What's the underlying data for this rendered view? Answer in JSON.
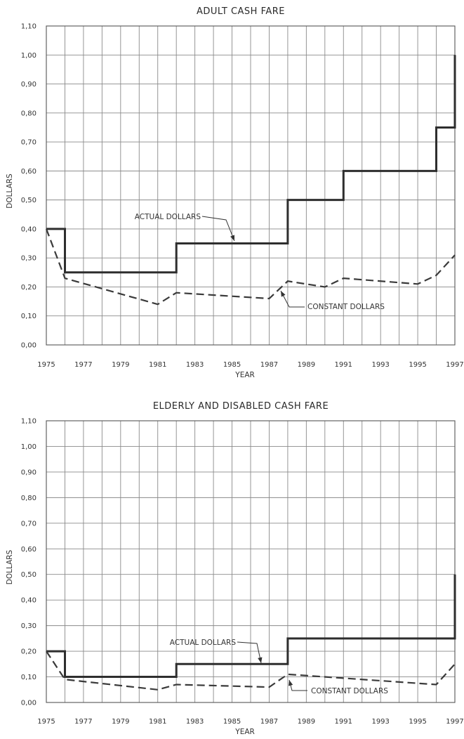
{
  "chart_data": [
    {
      "type": "line",
      "title": "ADULT CASH FARE",
      "xlabel": "YEAR",
      "ylabel": "DOLLARS",
      "xlim": [
        1975,
        1997
      ],
      "ylim": [
        0,
        1.1
      ],
      "x_ticks": [
        "1975",
        "1977",
        "1979",
        "1981",
        "1983",
        "1985",
        "1987",
        "1989",
        "1991",
        "1993",
        "1995",
        "1997"
      ],
      "y_ticks": [
        "0,00",
        "0,10",
        "0,20",
        "0,30",
        "0,40",
        "0,50",
        "0,60",
        "0,70",
        "0,80",
        "0,90",
        "1,00",
        "1,10"
      ],
      "grid": true,
      "series": [
        {
          "name": "ACTUAL DOLLARS",
          "style": "solid-step",
          "points": [
            [
              1975,
              0.4
            ],
            [
              1976,
              0.4
            ],
            [
              1976,
              0.25
            ],
            [
              1982,
              0.25
            ],
            [
              1982,
              0.35
            ],
            [
              1988,
              0.35
            ],
            [
              1988,
              0.5
            ],
            [
              1991,
              0.5
            ],
            [
              1991,
              0.6
            ],
            [
              1996,
              0.6
            ],
            [
              1996,
              0.75
            ],
            [
              1997,
              0.75
            ],
            [
              1997,
              1.0
            ]
          ]
        },
        {
          "name": "CONSTANT DOLLARS",
          "style": "dashed",
          "points": [
            [
              1975,
              0.4
            ],
            [
              1976,
              0.23
            ],
            [
              1981,
              0.14
            ],
            [
              1982,
              0.18
            ],
            [
              1987,
              0.16
            ],
            [
              1988,
              0.22
            ],
            [
              1990,
              0.2
            ],
            [
              1991,
              0.23
            ],
            [
              1995,
              0.21
            ],
            [
              1996,
              0.24
            ],
            [
              1997,
              0.31
            ]
          ]
        }
      ],
      "annotations": [
        {
          "text": "ACTUAL DOLLARS",
          "series": 0
        },
        {
          "text": "CONSTANT DOLLARS",
          "series": 1
        }
      ]
    },
    {
      "type": "line",
      "title": "ELDERLY AND DISABLED CASH FARE",
      "xlabel": "YEAR",
      "ylabel": "DOLLARS",
      "xlim": [
        1975,
        1997
      ],
      "ylim": [
        0,
        1.1
      ],
      "x_ticks": [
        "1975",
        "1977",
        "1979",
        "1981",
        "1983",
        "1985",
        "1987",
        "1989",
        "1991",
        "1993",
        "1995",
        "1997"
      ],
      "y_ticks": [
        "0,00",
        "0,10",
        "0,20",
        "0,30",
        "0,40",
        "0,50",
        "0,60",
        "0,70",
        "0,80",
        "0,90",
        "1,00",
        "1,10"
      ],
      "grid": true,
      "series": [
        {
          "name": "ACTUAL DOLLARS",
          "style": "solid-step",
          "points": [
            [
              1975,
              0.2
            ],
            [
              1976,
              0.2
            ],
            [
              1976,
              0.1
            ],
            [
              1982,
              0.1
            ],
            [
              1982,
              0.15
            ],
            [
              1988,
              0.15
            ],
            [
              1988,
              0.25
            ],
            [
              1997,
              0.25
            ],
            [
              1997,
              0.5
            ]
          ]
        },
        {
          "name": "CONSTANT DOLLARS",
          "style": "dashed",
          "points": [
            [
              1975,
              0.2
            ],
            [
              1976,
              0.09
            ],
            [
              1981,
              0.05
            ],
            [
              1982,
              0.07
            ],
            [
              1987,
              0.06
            ],
            [
              1988,
              0.11
            ],
            [
              1996,
              0.07
            ],
            [
              1997,
              0.15
            ]
          ]
        }
      ],
      "annotations": [
        {
          "text": "ACTUAL DOLLARS",
          "series": 0
        },
        {
          "text": "CONSTANT DOLLARS",
          "series": 1
        }
      ]
    }
  ]
}
